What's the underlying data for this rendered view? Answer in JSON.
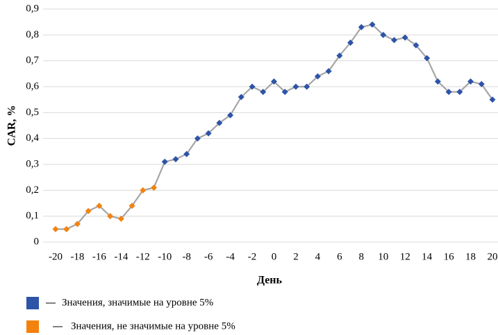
{
  "chart_data": {
    "type": "line",
    "xlabel": "День",
    "ylabel": "CAR, %",
    "x": [
      -20,
      -19,
      -18,
      -17,
      -16,
      -15,
      -14,
      -13,
      -12,
      -11,
      -10,
      -9,
      -8,
      -7,
      -6,
      -5,
      -4,
      -3,
      -2,
      -1,
      0,
      1,
      2,
      3,
      4,
      5,
      6,
      7,
      8,
      9,
      10,
      11,
      12,
      13,
      14,
      15,
      16,
      17,
      18,
      19,
      20
    ],
    "series": [
      {
        "name": "Значения, значимые на уровне 5%",
        "color": "#2e54a8",
        "values": [
          null,
          null,
          null,
          null,
          null,
          null,
          null,
          null,
          null,
          null,
          0.31,
          0.32,
          0.34,
          0.4,
          0.42,
          0.46,
          0.49,
          0.56,
          0.6,
          0.58,
          0.62,
          0.58,
          0.6,
          0.6,
          0.64,
          0.66,
          0.72,
          0.77,
          0.83,
          0.84,
          0.8,
          0.78,
          0.79,
          0.76,
          0.71,
          0.62,
          0.58,
          0.58,
          0.62,
          0.61,
          0.55
        ]
      },
      {
        "name": "Значения, не значимые на уровне 5%",
        "color": "#f4820f",
        "values": [
          0.05,
          0.05,
          0.07,
          0.12,
          0.14,
          0.1,
          0.09,
          0.14,
          0.2,
          0.21,
          null,
          null,
          null,
          null,
          null,
          null,
          null,
          null,
          null,
          null,
          null,
          null,
          null,
          null,
          null,
          null,
          null,
          null,
          null,
          null,
          null,
          null,
          null,
          null,
          null,
          null,
          null,
          null,
          null,
          null,
          null
        ]
      }
    ],
    "line_color": "#a5a5a5",
    "xlim": [
      -20,
      20
    ],
    "xticks": [
      -20,
      -18,
      -16,
      -14,
      -12,
      -10,
      -8,
      -6,
      -4,
      -2,
      0,
      2,
      4,
      6,
      8,
      10,
      12,
      14,
      16,
      18,
      20
    ],
    "ylim": [
      0,
      0.9
    ],
    "yticks": [
      0,
      {
        "value": 0.1,
        "label": "0,1"
      },
      {
        "value": 0.2,
        "label": "0,2"
      },
      {
        "value": 0.3,
        "label": "0,3"
      },
      {
        "value": 0.4,
        "label": "0,4"
      },
      {
        "value": 0.5,
        "label": "0,5"
      },
      {
        "value": 0.6,
        "label": "0,6"
      },
      {
        "value": 0.7,
        "label": "0,7"
      },
      {
        "value": 0.8,
        "label": "0,8"
      },
      {
        "value": 0.9,
        "label": "0,9"
      }
    ],
    "grid": true
  }
}
